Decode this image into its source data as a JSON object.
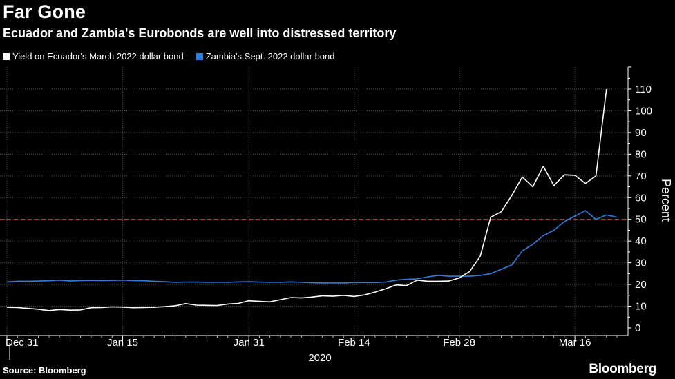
{
  "header": {
    "title": "Far Gone",
    "subtitle": "Ecuador and Zambia's Eurobonds are well into distressed territory"
  },
  "footer": {
    "source": "Source: Bloomberg",
    "brand": "Bloomberg"
  },
  "colors": {
    "ecuador": "#ffffff",
    "zambia": "#2b7fe0",
    "threshold": "#e8202a",
    "grid": "#555555"
  },
  "chart_data": {
    "type": "line",
    "title": "Far Gone",
    "subtitle": "Ecuador and Zambia's Eurobonds are well into distressed territory",
    "xlabel": "2020",
    "ylabel": "Percent",
    "ylim": [
      0,
      120
    ],
    "yticks": [
      0,
      10,
      20,
      30,
      40,
      50,
      60,
      70,
      80,
      90,
      100,
      110
    ],
    "grid": true,
    "legend_position": "top-left",
    "x_tick_labels": [
      {
        "label": "Dec 31",
        "index": 0
      },
      {
        "label": "Jan 15",
        "index": 11
      },
      {
        "label": "Jan 31",
        "index": 23
      },
      {
        "label": "Feb 14",
        "index": 33
      },
      {
        "label": "Feb 28",
        "index": 43
      },
      {
        "label": "Mar 16",
        "index": 54
      }
    ],
    "x_year_label": "2020",
    "threshold": {
      "value": 50,
      "style": "dashed"
    },
    "series": [
      {
        "name": "Yield on Ecuador's March 2022 dollar bond",
        "color": "#ffffff",
        "values": [
          9.5,
          9.4,
          9.0,
          8.6,
          8.0,
          8.5,
          8.2,
          8.3,
          9.3,
          9.4,
          9.7,
          9.6,
          9.3,
          9.4,
          9.5,
          9.8,
          10.2,
          11.2,
          10.5,
          10.4,
          10.3,
          11.0,
          11.3,
          12.5,
          12.2,
          12.0,
          13.0,
          14.0,
          13.8,
          14.2,
          14.8,
          14.6,
          15.0,
          14.5,
          15.2,
          16.5,
          18.0,
          19.8,
          19.5,
          22.0,
          21.5,
          21.5,
          21.6,
          23.0,
          26.0,
          33.0,
          51.0,
          53.5,
          61.0,
          69.5,
          65.0,
          74.5,
          65.5,
          70.5,
          70.3,
          66.5,
          70.0,
          110.0
        ],
        "show_from": 0
      },
      {
        "name": "Zambia's Sept. 2022 dollar bond",
        "color": "#2b7fe0",
        "values": [
          21.2,
          21.5,
          21.5,
          21.6,
          21.7,
          22.0,
          21.6,
          21.8,
          21.9,
          21.8,
          21.9,
          22.0,
          21.8,
          21.7,
          21.5,
          21.3,
          21.0,
          21.1,
          21.1,
          21.0,
          21.0,
          21.0,
          21.2,
          21.3,
          21.1,
          21.0,
          21.0,
          21.2,
          21.0,
          20.8,
          20.7,
          20.7,
          20.7,
          20.9,
          20.9,
          20.9,
          21.1,
          22.0,
          22.4,
          22.6,
          23.5,
          24.2,
          23.8,
          23.8,
          23.8,
          24.2,
          25.0,
          27.0,
          29.0,
          35.5,
          38.5,
          42.5,
          45.0,
          49.0,
          51.5,
          54.0,
          50.0,
          52.0,
          51.0
        ],
        "show_from": 0
      }
    ]
  }
}
